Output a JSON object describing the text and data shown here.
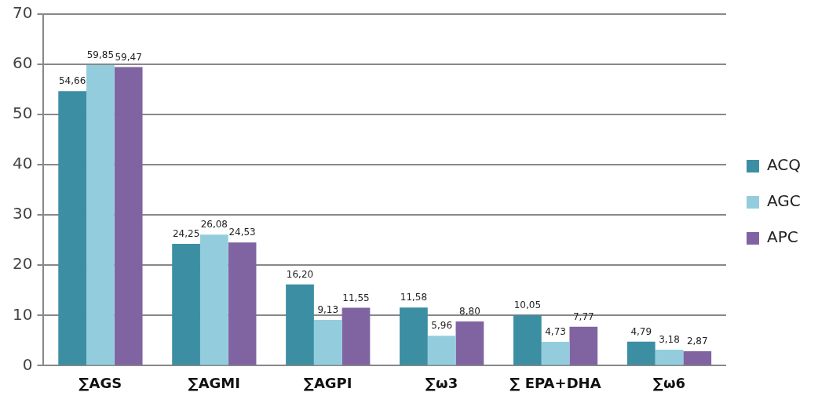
{
  "chart_data": {
    "type": "bar",
    "categories": [
      "∑AGS",
      "∑AGMI",
      "∑AGPI",
      "∑ω3",
      "∑ EPA+DHA",
      "∑ω6"
    ],
    "series": [
      {
        "name": "ACQ",
        "color": "#3c8ea3",
        "values": [
          54.66,
          24.25,
          16.2,
          11.58,
          10.05,
          4.79
        ],
        "value_labels": [
          "54,66",
          "24,25",
          "16,20",
          "11,58",
          "10,05",
          "4,79"
        ]
      },
      {
        "name": "AGC",
        "color": "#93cddd",
        "values": [
          59.85,
          26.08,
          9.13,
          5.96,
          4.73,
          3.18
        ],
        "value_labels": [
          "59,85",
          "26,08",
          "9,13",
          "5,96",
          "4,73",
          "3,18"
        ]
      },
      {
        "name": "APC",
        "color": "#8064a2",
        "values": [
          59.47,
          24.53,
          11.55,
          8.8,
          7.77,
          2.87
        ],
        "value_labels": [
          "59,47",
          "24,53",
          "11,55",
          "8,80",
          "7,77",
          "2,87"
        ]
      }
    ],
    "ylim": [
      0,
      70
    ],
    "yticks": [
      0,
      10,
      20,
      30,
      40,
      50,
      60,
      70
    ],
    "grid": "y",
    "legend": "right"
  }
}
